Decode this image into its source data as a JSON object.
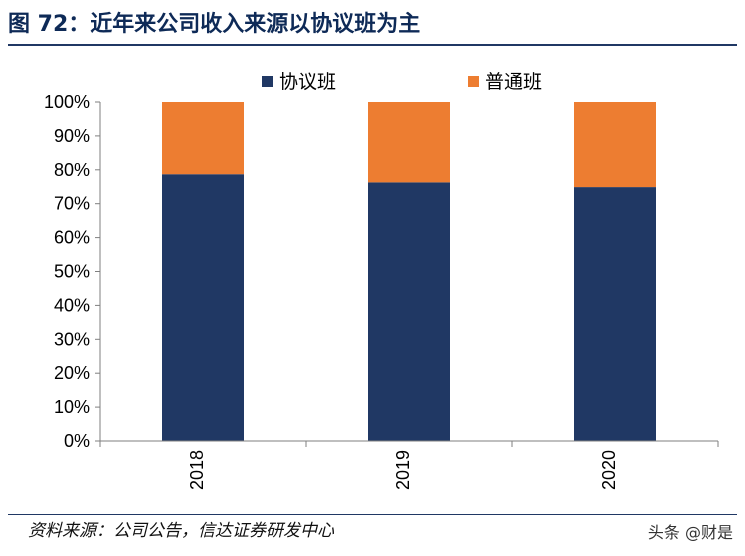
{
  "header": {
    "title": "图 72：近年来公司收入来源以协议班为主"
  },
  "footer": {
    "source": "资料来源：公司公告，信达证券研发中心",
    "watermark": "头条 @财是"
  },
  "colors": {
    "protocol": "#203864",
    "regular": "#ed7d31",
    "title": "#0e2a57"
  },
  "chart_data": {
    "type": "bar",
    "stacked": true,
    "categories": [
      "2018",
      "2019",
      "2020"
    ],
    "series": [
      {
        "name": "协议班",
        "values": [
          0.787,
          0.763,
          0.749
        ],
        "color": "#203864"
      },
      {
        "name": "普通班",
        "values": [
          0.213,
          0.237,
          0.251
        ],
        "color": "#ed7d31"
      }
    ],
    "y_ticks": [
      "0%",
      "10%",
      "20%",
      "30%",
      "40%",
      "50%",
      "60%",
      "70%",
      "80%",
      "90%",
      "100%"
    ],
    "ylim": [
      0,
      1
    ],
    "legend_position": "top-center",
    "grid": false
  }
}
